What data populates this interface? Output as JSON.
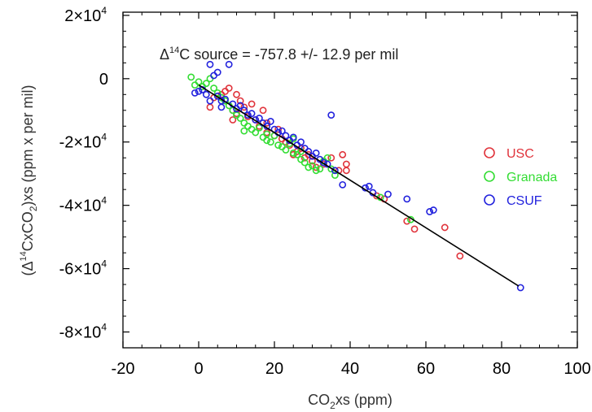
{
  "chart_data": {
    "type": "scatter",
    "title": "",
    "annotation": {
      "prefix": "Δ",
      "superscript": "14",
      "main": "C  source = -757.8 +/-  12.9 per mil"
    },
    "xlabel": {
      "main": "CO",
      "sub": "2",
      "rest": "xs (ppm)"
    },
    "ylabel": {
      "open": "(Δ",
      "sup": "14",
      "mid": "CxCO",
      "sub": "2",
      "rest": ")xs (ppm x per mil)"
    },
    "xlim": [
      -20,
      100
    ],
    "ylim": [
      -85000,
      21000
    ],
    "x_ticks": [
      {
        "value": -20,
        "label": "-20"
      },
      {
        "value": 0,
        "label": "0"
      },
      {
        "value": 20,
        "label": "20"
      },
      {
        "value": 40,
        "label": "40"
      },
      {
        "value": 60,
        "label": "60"
      },
      {
        "value": 80,
        "label": "80"
      },
      {
        "value": 100,
        "label": "100"
      }
    ],
    "y_ticks": [
      {
        "value": 20000,
        "label": "2×10",
        "exp": "4"
      },
      {
        "value": 0,
        "label": "0",
        "exp": ""
      },
      {
        "value": -20000,
        "label": "-2×10",
        "exp": "4"
      },
      {
        "value": -40000,
        "label": "-4×10",
        "exp": "4"
      },
      {
        "value": -60000,
        "label": "-6×10",
        "exp": "4"
      },
      {
        "value": -80000,
        "label": "-8×10",
        "exp": "4"
      }
    ],
    "fit_line": {
      "x": [
        0,
        84.5
      ],
      "y": [
        -2000,
        -65500
      ],
      "color": "#000000"
    },
    "legend_position": "right",
    "series": [
      {
        "name": "USC",
        "color": "#e0333b",
        "points": [
          [
            3,
            -9000
          ],
          [
            4,
            -6000
          ],
          [
            6,
            -5000
          ],
          [
            7,
            -4000
          ],
          [
            8,
            -3000
          ],
          [
            9,
            -10000
          ],
          [
            10,
            -11000
          ],
          [
            10,
            -5000
          ],
          [
            11,
            -7000
          ],
          [
            12,
            -9000
          ],
          [
            13,
            -12000
          ],
          [
            14,
            -8000
          ],
          [
            15,
            -13000
          ],
          [
            16,
            -15000
          ],
          [
            17,
            -10000
          ],
          [
            18,
            -14000
          ],
          [
            18,
            -17000
          ],
          [
            20,
            -18000
          ],
          [
            21,
            -16000
          ],
          [
            22,
            -19000
          ],
          [
            23,
            -20000
          ],
          [
            24,
            -21000
          ],
          [
            25,
            -24000
          ],
          [
            26,
            -23000
          ],
          [
            27,
            -22000
          ],
          [
            28,
            -25000
          ],
          [
            29,
            -24000
          ],
          [
            30,
            -26000
          ],
          [
            31,
            -28000
          ],
          [
            33,
            -27000
          ],
          [
            35,
            -25000
          ],
          [
            37,
            -29000
          ],
          [
            38,
            -24000
          ],
          [
            39,
            -27000
          ],
          [
            39,
            -29000
          ],
          [
            47,
            -37000
          ],
          [
            49,
            -38000
          ],
          [
            55,
            -45000
          ],
          [
            57,
            -47500
          ],
          [
            65,
            -47000
          ],
          [
            69,
            -56000
          ],
          [
            9,
            -13000
          ]
        ]
      },
      {
        "name": "Granada",
        "color": "#33dd33",
        "points": [
          [
            -2,
            500
          ],
          [
            -1,
            -2000
          ],
          [
            0,
            -1000
          ],
          [
            1,
            -2500
          ],
          [
            2,
            -1500
          ],
          [
            3,
            0
          ],
          [
            4,
            -3000
          ],
          [
            5,
            -4500
          ],
          [
            6,
            -6000
          ],
          [
            7,
            -7000
          ],
          [
            8,
            -8500
          ],
          [
            9,
            -10000
          ],
          [
            10,
            -11500
          ],
          [
            11,
            -12500
          ],
          [
            12,
            -14000
          ],
          [
            13,
            -15000
          ],
          [
            14,
            -16000
          ],
          [
            15,
            -17000
          ],
          [
            16,
            -15500
          ],
          [
            17,
            -18500
          ],
          [
            18,
            -19500
          ],
          [
            19,
            -20000
          ],
          [
            20,
            -18000
          ],
          [
            21,
            -21000
          ],
          [
            22,
            -21500
          ],
          [
            23,
            -22500
          ],
          [
            24,
            -20500
          ],
          [
            25,
            -23500
          ],
          [
            26,
            -24000
          ],
          [
            27,
            -25500
          ],
          [
            28,
            -26500
          ],
          [
            29,
            -28000
          ],
          [
            30,
            -27500
          ],
          [
            31,
            -29000
          ],
          [
            32,
            -28500
          ],
          [
            33,
            -26000
          ],
          [
            34,
            -25000
          ],
          [
            35,
            -28500
          ],
          [
            36,
            -30500
          ],
          [
            48,
            -37500
          ],
          [
            56,
            -44500
          ],
          [
            12,
            -16500
          ],
          [
            18,
            -17500
          ],
          [
            25,
            -19000
          ],
          [
            27,
            -23000
          ]
        ]
      },
      {
        "name": "CSUF",
        "color": "#2222dd",
        "points": [
          [
            -1,
            -4500
          ],
          [
            0,
            -4000
          ],
          [
            1,
            -3500
          ],
          [
            2,
            -5000
          ],
          [
            3,
            4500
          ],
          [
            4,
            1000
          ],
          [
            5,
            -5500
          ],
          [
            6,
            -7000
          ],
          [
            7,
            -6500
          ],
          [
            8,
            4500
          ],
          [
            9,
            -8000
          ],
          [
            10,
            -9500
          ],
          [
            11,
            -8500
          ],
          [
            12,
            -10000
          ],
          [
            13,
            -11500
          ],
          [
            14,
            -11000
          ],
          [
            15,
            -13000
          ],
          [
            16,
            -12500
          ],
          [
            17,
            -14000
          ],
          [
            18,
            -15000
          ],
          [
            19,
            -13500
          ],
          [
            20,
            -16000
          ],
          [
            21,
            -17000
          ],
          [
            22,
            -16500
          ],
          [
            23,
            -18000
          ],
          [
            24,
            -19500
          ],
          [
            25,
            -18500
          ],
          [
            26,
            -21000
          ],
          [
            27,
            -20000
          ],
          [
            28,
            -22000
          ],
          [
            29,
            -23000
          ],
          [
            30,
            -24500
          ],
          [
            31,
            -23500
          ],
          [
            32,
            -25500
          ],
          [
            33,
            -26500
          ],
          [
            34,
            -27000
          ],
          [
            35,
            -11500
          ],
          [
            36,
            -29000
          ],
          [
            38,
            -33500
          ],
          [
            44,
            -34500
          ],
          [
            45,
            -34000
          ],
          [
            46,
            -36000
          ],
          [
            50,
            -36500
          ],
          [
            55,
            -38000
          ],
          [
            61,
            -42000
          ],
          [
            62,
            -41500
          ],
          [
            85,
            -66000
          ],
          [
            6,
            -9000
          ],
          [
            5,
            2000
          ],
          [
            3,
            -7000
          ]
        ]
      }
    ]
  }
}
